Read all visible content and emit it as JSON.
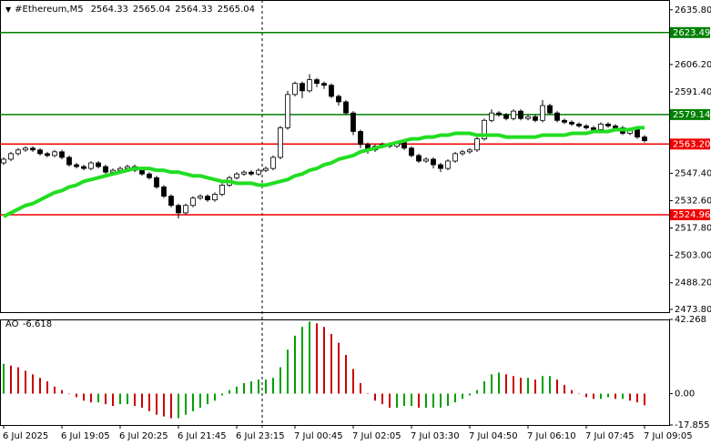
{
  "chart_data": [
    {
      "type": "candlestick",
      "symbol": "#Ethereum,M5",
      "quote": [
        2564.33,
        2565.04,
        2564.33,
        2565.04
      ],
      "categories": [
        "6 Jul 2025",
        null,
        null,
        null,
        null,
        null,
        null,
        null,
        "6 Jul 19:05",
        null,
        null,
        null,
        null,
        null,
        null,
        null,
        "6 Jul 20:25",
        null,
        null,
        null,
        null,
        null,
        null,
        null,
        "6 Jul 21:45",
        null,
        null,
        null,
        null,
        null,
        null,
        null,
        "6 Jul 23:15",
        null,
        null,
        null,
        null,
        null,
        null,
        null,
        "7 Jul 00:45",
        null,
        null,
        null,
        null,
        null,
        null,
        null,
        "7 Jul 02:05",
        null,
        null,
        null,
        null,
        null,
        null,
        null,
        "7 Jul 03:30",
        null,
        null,
        null,
        null,
        null,
        null,
        null,
        "7 Jul 04:50",
        null,
        null,
        null,
        null,
        null,
        null,
        null,
        "7 Jul 06:10",
        null,
        null,
        null,
        null,
        null,
        null,
        null,
        "7 Jul 07:45",
        null,
        null,
        null,
        null,
        null,
        null,
        null,
        "7 Jul 09:05"
      ],
      "open": [
        2553,
        2555,
        2558,
        2560,
        2561,
        2560,
        2558,
        2557,
        2559,
        2556,
        2552,
        2551,
        2550,
        2553,
        2551,
        2548,
        2549,
        2550,
        2551,
        2549,
        2547,
        2545,
        2540,
        2535,
        2530,
        2526,
        2530,
        2534,
        2535,
        2533,
        2536,
        2541,
        2545,
        2547,
        2548,
        2547,
        2549,
        2550,
        2556,
        2572,
        2590,
        2596,
        2592,
        2598,
        2596,
        2595,
        2589,
        2586,
        2580,
        2570,
        2563,
        2560,
        2562,
        2563,
        2562,
        2564,
        2561,
        2557,
        2554,
        2555,
        2552,
        2550,
        2554,
        2558,
        2559,
        2560,
        2566,
        2576,
        2580,
        2579,
        2577,
        2581,
        2577,
        2578,
        2576,
        2584,
        2580,
        2576,
        2575,
        2574,
        2573,
        2572,
        2571,
        2574,
        2573,
        2572,
        2569,
        2571,
        2567
      ],
      "high": [
        2556,
        2559,
        2561,
        2562,
        2562,
        2561,
        2559,
        2560,
        2560,
        2557,
        2553,
        2552,
        2554,
        2554,
        2552,
        2550,
        2551,
        2552,
        2552,
        2550,
        2548,
        2546,
        2541,
        2536,
        2531,
        2531,
        2535,
        2536,
        2536,
        2537,
        2542,
        2546,
        2548,
        2549,
        2549,
        2550,
        2551,
        2557,
        2573,
        2592,
        2597,
        2597,
        2601,
        2599,
        2597,
        2596,
        2590,
        2587,
        2581,
        2571,
        2564,
        2563,
        2564,
        2564,
        2565,
        2565,
        2562,
        2558,
        2556,
        2556,
        2553,
        2555,
        2559,
        2560,
        2561,
        2567,
        2577,
        2582,
        2581,
        2580,
        2582,
        2582,
        2579,
        2579,
        2587,
        2585,
        2581,
        2577,
        2576,
        2575,
        2574,
        2573,
        2575,
        2575,
        2574,
        2573,
        2572,
        2572,
        2568
      ],
      "low": [
        2552,
        2554,
        2557,
        2559,
        2559,
        2557,
        2556,
        2556,
        2555,
        2551,
        2550,
        2549,
        2549,
        2550,
        2547,
        2547,
        2548,
        2549,
        2548,
        2546,
        2544,
        2539,
        2534,
        2529,
        2523,
        2525,
        2529,
        2533,
        2532,
        2532,
        2535,
        2540,
        2544,
        2546,
        2546,
        2546,
        2548,
        2549,
        2555,
        2571,
        2589,
        2588,
        2591,
        2594,
        2593,
        2588,
        2584,
        2579,
        2568,
        2561,
        2558,
        2559,
        2561,
        2561,
        2561,
        2560,
        2556,
        2553,
        2553,
        2550,
        2548,
        2549,
        2553,
        2557,
        2558,
        2559,
        2565,
        2575,
        2578,
        2576,
        2576,
        2576,
        2576,
        2575,
        2575,
        2579,
        2575,
        2574,
        2573,
        2572,
        2571,
        2570,
        2570,
        2572,
        2571,
        2568,
        2568,
        2566,
        2564
      ],
      "close": [
        2555,
        2558,
        2560,
        2561,
        2560,
        2558,
        2557,
        2559,
        2556,
        2552,
        2551,
        2550,
        2553,
        2551,
        2548,
        2549,
        2550,
        2551,
        2549,
        2547,
        2545,
        2540,
        2535,
        2530,
        2526,
        2530,
        2534,
        2535,
        2533,
        2536,
        2541,
        2545,
        2547,
        2548,
        2547,
        2549,
        2550,
        2556,
        2572,
        2590,
        2596,
        2592,
        2598,
        2596,
        2595,
        2589,
        2586,
        2580,
        2570,
        2563,
        2560,
        2562,
        2563,
        2562,
        2564,
        2561,
        2557,
        2554,
        2555,
        2552,
        2550,
        2554,
        2558,
        2559,
        2560,
        2566,
        2576,
        2580,
        2579,
        2577,
        2581,
        2577,
        2578,
        2576,
        2584,
        2580,
        2576,
        2575,
        2574,
        2573,
        2572,
        2571,
        2574,
        2573,
        2572,
        2569,
        2571,
        2567,
        2565
      ],
      "ma": {
        "color": "#22dd22",
        "values": [
          2524,
          2526,
          2528,
          2530,
          2531,
          2533,
          2535,
          2537,
          2538,
          2540,
          2541,
          2543,
          2544,
          2545,
          2546,
          2547,
          2548,
          2549,
          2550,
          2550,
          2550,
          2549,
          2549,
          2548,
          2548,
          2547,
          2546,
          2546,
          2545,
          2544,
          2543,
          2543,
          2542,
          2542,
          2542,
          2541,
          2541,
          2542,
          2543,
          2544,
          2546,
          2547,
          2549,
          2550,
          2552,
          2553,
          2555,
          2556,
          2557,
          2559,
          2560,
          2561,
          2562,
          2563,
          2564,
          2565,
          2566,
          2566,
          2567,
          2567,
          2568,
          2568,
          2569,
          2569,
          2569,
          2568,
          2568,
          2568,
          2568,
          2567,
          2567,
          2567,
          2567,
          2567,
          2568,
          2568,
          2568,
          2568,
          2569,
          2569,
          2569,
          2570,
          2570,
          2570,
          2571,
          2571,
          2571,
          2572,
          2572
        ]
      },
      "levels": [
        {
          "value": 2623.49,
          "color": "#008000"
        },
        {
          "value": 2579.14,
          "color": "#008000"
        },
        {
          "value": 2563.2,
          "label": "2563.20",
          "color": "#ee0000"
        },
        {
          "value": 2524.96,
          "color": "#ee0000"
        }
      ],
      "ylim": [
        2472.3,
        2641.1
      ],
      "yticks": [
        {
          "value": 2635.8,
          "label": "2635.80"
        },
        {
          "value": 2606.2,
          "label": "2606.20"
        },
        {
          "value": 2591.4,
          "label": "2591.40"
        },
        {
          "value": 2547.4,
          "label": "2547.40"
        },
        {
          "value": 2532.6,
          "label": "2532.60"
        },
        {
          "value": 2517.8,
          "label": "2517.80"
        },
        {
          "value": 2503,
          "label": "2503.00"
        },
        {
          "value": 2488.2,
          "label": "2488.20"
        },
        {
          "value": 2473.8,
          "label": "2473.80"
        }
      ]
    },
    {
      "type": "bar",
      "name": "AO",
      "up_color": "#00a000",
      "down_color": "#cc0000",
      "values": [
        17,
        16,
        15,
        13,
        11,
        9,
        7,
        4,
        2,
        0,
        -2,
        -4,
        -5,
        -5,
        -6,
        -7,
        -6,
        -6,
        -7,
        -8,
        -10,
        -12,
        -13,
        -14,
        -14,
        -12,
        -10,
        -8,
        -6,
        -4,
        -1,
        2,
        4,
        6,
        7,
        8,
        8,
        9,
        15,
        25,
        33,
        38,
        41,
        40,
        38,
        34,
        29,
        22,
        14,
        6,
        0,
        -4,
        -6,
        -8,
        -8,
        -7,
        -7,
        -8,
        -8,
        -8,
        -8,
        -7,
        -5,
        -3,
        -1,
        2,
        7,
        11,
        12,
        11,
        10,
        9,
        9,
        8,
        10,
        10,
        8,
        5,
        2,
        0,
        -2,
        -3,
        -3,
        -2,
        -3,
        -3,
        -4,
        -5,
        -6.618
      ],
      "ylim": [
        -17.855,
        42.268
      ],
      "yticks": [
        42.268,
        {
          "value": 0,
          "label": "0.00"
        },
        -17.855
      ]
    }
  ]
}
